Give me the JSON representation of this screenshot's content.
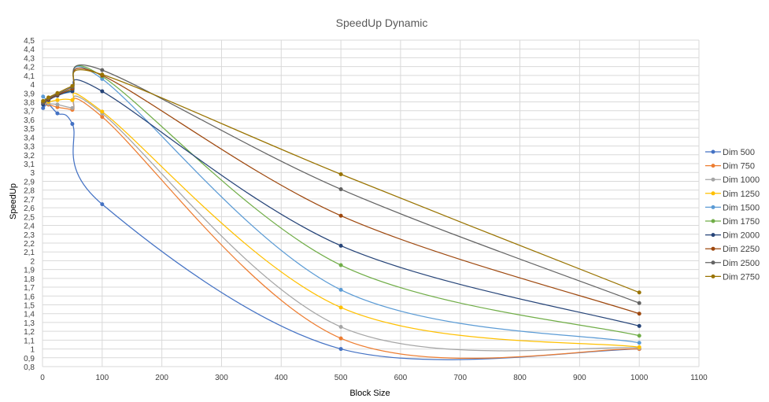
{
  "chart_data": {
    "type": "line",
    "title": "SpeedUp Dynamic",
    "xlabel": "Block Size",
    "ylabel": "SpeedUp",
    "xlim": [
      0,
      1100
    ],
    "ylim": [
      0.8,
      4.5
    ],
    "x_ticks": [
      0,
      100,
      200,
      300,
      400,
      500,
      600,
      700,
      800,
      900,
      1000,
      1100
    ],
    "x_tick_labels": [
      "0",
      "100",
      "200",
      "300",
      "400",
      "500",
      "600",
      "700",
      "800",
      "900",
      "1000",
      "1100"
    ],
    "y_ticks": [
      0.8,
      0.9,
      1.0,
      1.1,
      1.2,
      1.3,
      1.4,
      1.5,
      1.6,
      1.7,
      1.8,
      1.9,
      2.0,
      2.1,
      2.2,
      2.3,
      2.4,
      2.5,
      2.6,
      2.7,
      2.8,
      2.9,
      3.0,
      3.1,
      3.2,
      3.3,
      3.4,
      3.5,
      3.6,
      3.7,
      3.8,
      3.9,
      4.0,
      4.1,
      4.2,
      4.3,
      4.4,
      4.5
    ],
    "y_tick_labels": [
      "0,8",
      "0,9",
      "1",
      "1,1",
      "1,2",
      "1,3",
      "1,4",
      "1,5",
      "1,6",
      "1,7",
      "1,8",
      "1,9",
      "2",
      "2,1",
      "2,2",
      "2,3",
      "2,4",
      "2,5",
      "2,6",
      "2,7",
      "2,8",
      "2,9",
      "3",
      "3,1",
      "3,2",
      "3,3",
      "3,4",
      "3,5",
      "3,6",
      "3,7",
      "3,8",
      "3,9",
      "4",
      "4,1",
      "4,2",
      "4,3",
      "4,4",
      "4,5"
    ],
    "grid": true,
    "smooth": true,
    "legend_position": "right",
    "x": [
      1,
      10,
      25,
      50,
      100,
      500,
      1000
    ],
    "series": [
      {
        "name": "Dim 500",
        "color": "#4472C4",
        "values": [
          3.73,
          3.77,
          3.67,
          3.55,
          2.64,
          1.0,
          1.0
        ]
      },
      {
        "name": "Dim 750",
        "color": "#ED7D31",
        "values": [
          3.78,
          3.77,
          3.74,
          3.71,
          3.63,
          1.12,
          1.0
        ]
      },
      {
        "name": "Dim 1000",
        "color": "#A5A5A5",
        "values": [
          3.79,
          3.78,
          3.77,
          3.73,
          3.67,
          1.25,
          1.01
        ]
      },
      {
        "name": "Dim 1250",
        "color": "#FFC000",
        "values": [
          3.8,
          3.8,
          3.82,
          3.82,
          3.69,
          1.47,
          1.02
        ]
      },
      {
        "name": "Dim 1500",
        "color": "#5B9BD5",
        "values": [
          3.86,
          3.82,
          3.88,
          3.92,
          4.06,
          1.67,
          1.07
        ]
      },
      {
        "name": "Dim 1750",
        "color": "#70AD47",
        "values": [
          3.81,
          3.83,
          3.89,
          3.94,
          4.09,
          1.95,
          1.15
        ]
      },
      {
        "name": "Dim 2000",
        "color": "#264478",
        "values": [
          3.77,
          3.82,
          3.87,
          3.92,
          3.92,
          2.17,
          1.26
        ]
      },
      {
        "name": "Dim 2250",
        "color": "#9E480E",
        "values": [
          3.79,
          3.83,
          3.88,
          3.95,
          4.1,
          2.51,
          1.4
        ]
      },
      {
        "name": "Dim 2500",
        "color": "#636363",
        "values": [
          3.79,
          3.84,
          3.89,
          3.97,
          4.16,
          2.81,
          1.52
        ]
      },
      {
        "name": "Dim 2750",
        "color": "#997300",
        "values": [
          3.81,
          3.85,
          3.9,
          3.98,
          4.11,
          2.98,
          1.64
        ]
      }
    ]
  }
}
